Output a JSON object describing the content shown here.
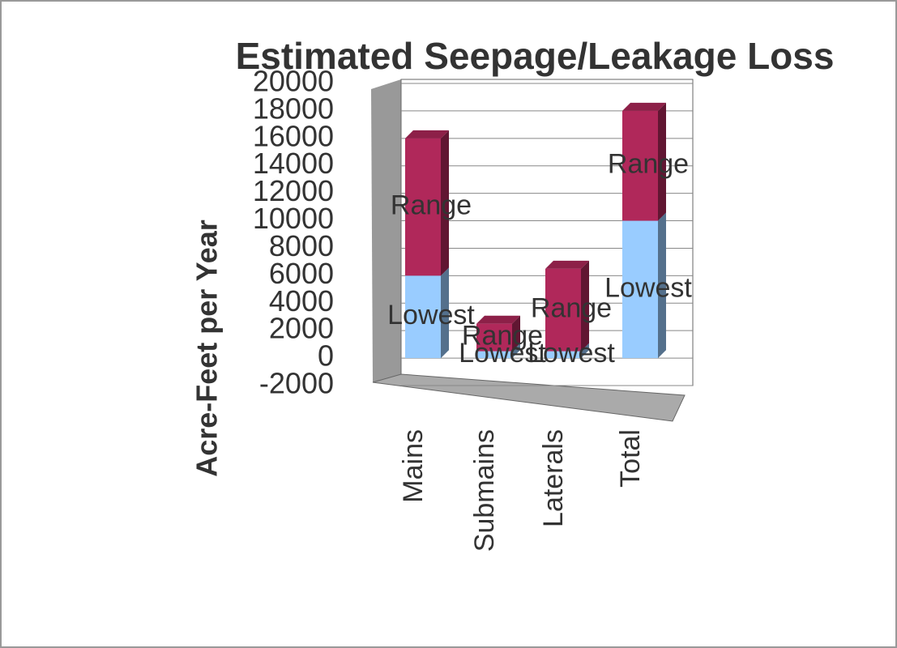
{
  "chart_data": {
    "type": "bar",
    "stacked": true,
    "title": "Estimated Seepage/Leakage Loss",
    "y_label": "Acre-Feet per Year",
    "categories": [
      "Mains",
      "Submains",
      "Laterals",
      "Total"
    ],
    "series": [
      {
        "name": "Lowest",
        "color": "#99ccff",
        "values": [
          6000,
          500,
          500,
          10000
        ]
      },
      {
        "name": "Range",
        "color": "#b0285a",
        "values": [
          10000,
          2000,
          6000,
          8000
        ]
      }
    ],
    "ylim": [
      -2000,
      20000
    ],
    "yticks": [
      -2000,
      0,
      2000,
      4000,
      6000,
      8000,
      10000,
      12000,
      14000,
      16000,
      18000,
      20000
    ],
    "grid": true
  }
}
